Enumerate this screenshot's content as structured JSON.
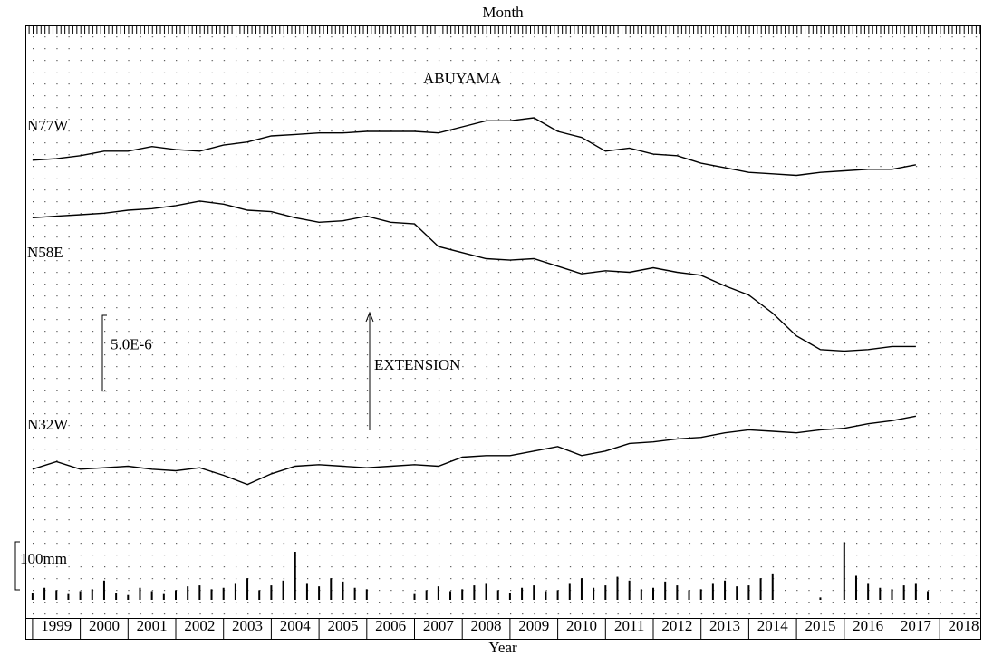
{
  "chart_data": [
    {
      "type": "line",
      "title": "ABUYAMA",
      "top_label": "Month",
      "xlabel": "Year",
      "annotation": "EXTENSION",
      "xlim": [
        1998.85,
        2018.85
      ],
      "xticks": [
        1999,
        2000,
        2001,
        2002,
        2003,
        2004,
        2005,
        2006,
        2007,
        2008,
        2009,
        2010,
        2011,
        2012,
        2013,
        2014,
        2015,
        2016,
        2017,
        2018
      ],
      "ylim": [
        0,
        3.9e-05
      ],
      "scale_bar": {
        "value": 5e-06,
        "label": "5.0E-6"
      },
      "x": [
        1999.0,
        1999.5,
        2000.0,
        2000.5,
        2001.0,
        2001.5,
        2002.0,
        2002.5,
        2003.0,
        2003.5,
        2004.0,
        2004.5,
        2005.0,
        2005.5,
        2006.0,
        2006.5,
        2007.0,
        2007.5,
        2008.0,
        2008.5,
        2009.0,
        2009.5,
        2010.0,
        2010.5,
        2011.0,
        2011.5,
        2012.0,
        2012.5,
        2013.0,
        2013.5,
        2014.0,
        2014.5,
        2015.0,
        2015.5,
        2016.0,
        2016.5,
        2017.0,
        2017.5
      ],
      "series": [
        {
          "name": "N77W",
          "color": "#000000",
          "values": [
            3.01e-05,
            3.02e-05,
            3.04e-05,
            3.07e-05,
            3.07e-05,
            3.1e-05,
            3.08e-05,
            3.07e-05,
            3.11e-05,
            3.13e-05,
            3.17e-05,
            3.18e-05,
            3.19e-05,
            3.19e-05,
            3.2e-05,
            3.2e-05,
            3.2e-05,
            3.19e-05,
            3.23e-05,
            3.27e-05,
            3.27e-05,
            3.29e-05,
            3.2e-05,
            3.16e-05,
            3.07e-05,
            3.09e-05,
            3.05e-05,
            3.04e-05,
            2.99e-05,
            2.96e-05,
            2.93e-05,
            2.92e-05,
            2.91e-05,
            2.93e-05,
            2.94e-05,
            2.95e-05,
            2.95e-05,
            2.98e-05
          ]
        },
        {
          "name": "N58E",
          "color": "#000000",
          "values": [
            2.63e-05,
            2.64e-05,
            2.65e-05,
            2.66e-05,
            2.68e-05,
            2.69e-05,
            2.71e-05,
            2.74e-05,
            2.72e-05,
            2.68e-05,
            2.67e-05,
            2.63e-05,
            2.6e-05,
            2.61e-05,
            2.64e-05,
            2.6e-05,
            2.59e-05,
            2.44e-05,
            2.4e-05,
            2.36e-05,
            2.35e-05,
            2.36e-05,
            2.31e-05,
            2.26e-05,
            2.28e-05,
            2.27e-05,
            2.3e-05,
            2.27e-05,
            2.25e-05,
            2.18e-05,
            2.12e-05,
            2e-05,
            1.85e-05,
            1.76e-05,
            1.75e-05,
            1.76e-05,
            1.78e-05,
            1.78e-05
          ]
        },
        {
          "name": "N32W",
          "color": "#000000",
          "values": [
            9.7e-06,
            1.02e-05,
            9.7e-06,
            9.8e-06,
            9.9e-06,
            9.7e-06,
            9.6e-06,
            9.8e-06,
            9.3e-06,
            8.7e-06,
            9.4e-06,
            9.9e-06,
            1e-05,
            9.9e-06,
            9.8e-06,
            9.9e-06,
            1e-05,
            9.9e-06,
            1.05e-05,
            1.06e-05,
            1.06e-05,
            1.09e-05,
            1.12e-05,
            1.06e-05,
            1.09e-05,
            1.14e-05,
            1.15e-05,
            1.17e-05,
            1.18e-05,
            1.21e-05,
            1.23e-05,
            1.22e-05,
            1.21e-05,
            1.23e-05,
            1.24e-05,
            1.27e-05,
            1.29e-05,
            1.32e-05
          ]
        }
      ]
    },
    {
      "type": "bar",
      "color": "#000000",
      "ylim": [
        0,
        200
      ],
      "scale_bar": {
        "value": 100,
        "label": "100mm"
      },
      "x": [
        1999.0,
        1999.25,
        1999.5,
        1999.75,
        2000.0,
        2000.25,
        2000.5,
        2000.75,
        2001.0,
        2001.25,
        2001.5,
        2001.75,
        2002.0,
        2002.25,
        2002.5,
        2002.75,
        2003.0,
        2003.25,
        2003.5,
        2003.75,
        2004.0,
        2004.25,
        2004.5,
        2004.75,
        2005.0,
        2005.25,
        2005.5,
        2005.75,
        2006.0,
        2006.25,
        2006.5,
        2006.75,
        2007.0,
        2007.25,
        2007.5,
        2007.75,
        2008.0,
        2008.25,
        2008.5,
        2008.75,
        2009.0,
        2009.25,
        2009.5,
        2009.75,
        2010.0,
        2010.25,
        2010.5,
        2010.75,
        2011.0,
        2011.25,
        2011.5,
        2011.75,
        2012.0,
        2012.25,
        2012.5,
        2012.75,
        2013.0,
        2013.25,
        2013.5,
        2013.75,
        2014.0,
        2014.25,
        2014.5,
        2014.75,
        2015.0,
        2015.25,
        2015.5,
        2015.75,
        2016.0,
        2016.25,
        2016.5,
        2016.75,
        2017.0,
        2017.25,
        2017.5,
        2017.75
      ],
      "values": [
        15,
        25,
        20,
        12,
        18,
        22,
        40,
        15,
        10,
        25,
        18,
        12,
        20,
        28,
        30,
        22,
        25,
        35,
        45,
        20,
        30,
        40,
        100,
        35,
        28,
        45,
        38,
        25,
        22,
        null,
        null,
        null,
        12,
        20,
        28,
        18,
        22,
        30,
        35,
        20,
        15,
        25,
        30,
        18,
        20,
        35,
        45,
        25,
        30,
        48,
        40,
        22,
        25,
        38,
        30,
        20,
        22,
        35,
        40,
        28,
        30,
        45,
        55,
        null,
        null,
        null,
        5,
        null,
        120,
        50,
        35,
        25,
        22,
        30,
        35,
        18
      ]
    }
  ]
}
